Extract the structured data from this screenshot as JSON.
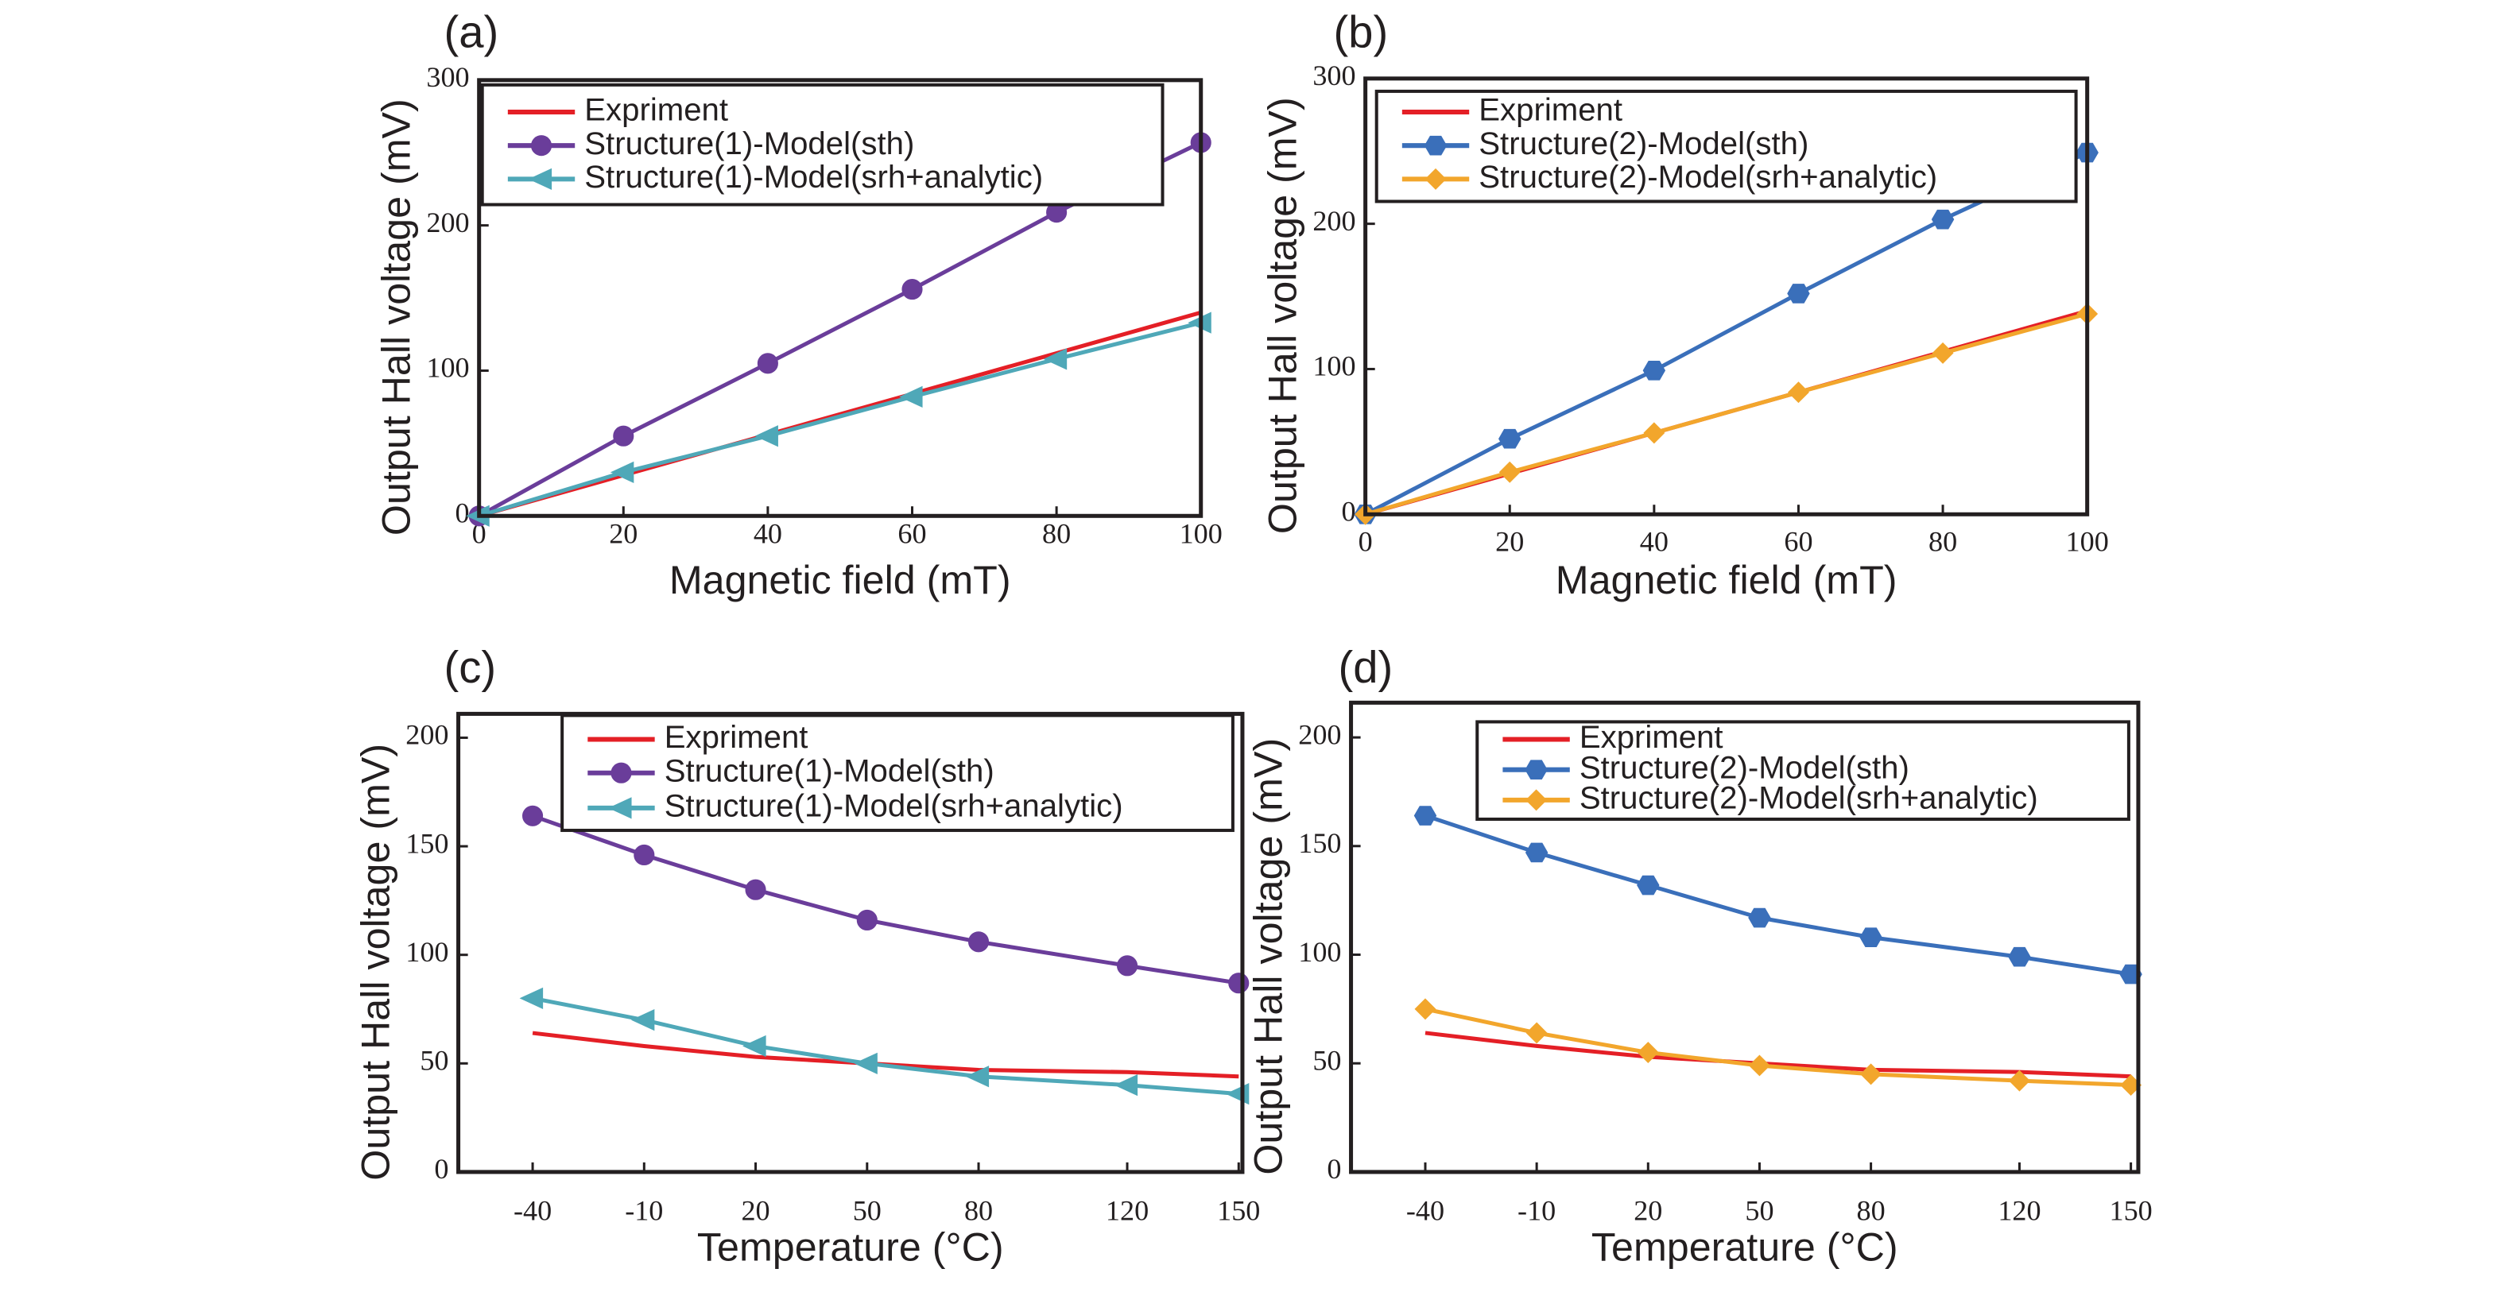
{
  "chart_data": [
    {
      "type": "line",
      "label": "(a)",
      "xlabel": "Magnetic field (mT)",
      "ylabel": "Output Hall voltage (mV)",
      "x": [
        0,
        20,
        40,
        60,
        80,
        100
      ],
      "xlim": [
        0,
        100
      ],
      "xticks": [
        0,
        20,
        40,
        60,
        80,
        100
      ],
      "ylim": [
        0,
        300
      ],
      "yticks": [
        0,
        100,
        200,
        300
      ],
      "series": [
        {
          "name": "Expriment",
          "color": "#e41f26",
          "marker": "none",
          "values": [
            0,
            28,
            56,
            84,
            112,
            140
          ]
        },
        {
          "name": "Structure(1)-Model(sth)",
          "color": "#6a3d9a",
          "marker": "circle",
          "values": [
            0,
            55,
            105,
            156,
            209,
            257
          ]
        },
        {
          "name": "Structure(1)-Model(srh+analytic)",
          "color": "#4fa8b8",
          "marker": "triangle-left",
          "values": [
            0,
            30,
            55,
            82,
            108,
            133
          ]
        }
      ]
    },
    {
      "type": "line",
      "label": "(b)",
      "xlabel": "Magnetic field (mT)",
      "ylabel": "Output Hall voltage (mV)",
      "x": [
        0,
        20,
        40,
        60,
        80,
        100
      ],
      "xlim": [
        0,
        100
      ],
      "xticks": [
        0,
        20,
        40,
        60,
        80,
        100
      ],
      "ylim": [
        0,
        300
      ],
      "yticks": [
        0,
        100,
        200,
        300
      ],
      "series": [
        {
          "name": "Expriment",
          "color": "#e41f26",
          "marker": "none",
          "values": [
            0,
            28,
            56,
            84,
            112,
            140
          ]
        },
        {
          "name": "Structure(2)-Model(sth)",
          "color": "#3a6fba",
          "marker": "hexagon",
          "values": [
            0,
            52,
            99,
            152,
            203,
            249
          ]
        },
        {
          "name": "Structure(2)-Model(srh+analytic)",
          "color": "#f2a62c",
          "marker": "diamond",
          "values": [
            0,
            29,
            56,
            84,
            111,
            138
          ]
        }
      ]
    },
    {
      "type": "line",
      "label": "(c)",
      "xlabel": "Temperature (°C)",
      "ylabel": "Output Hall voltage (mV)",
      "x": [
        -40,
        -10,
        20,
        50,
        80,
        120,
        150
      ],
      "xlim": [
        -60,
        151
      ],
      "xticks": [
        -40,
        -10,
        20,
        50,
        80,
        120,
        150
      ],
      "ylim": [
        0,
        211
      ],
      "yticks": [
        0,
        50,
        100,
        150,
        200
      ],
      "series": [
        {
          "name": "Expriment",
          "color": "#e41f26",
          "marker": "none",
          "values": [
            64,
            58,
            53,
            50,
            47,
            46,
            44
          ]
        },
        {
          "name": "Structure(1)-Model(sth)",
          "color": "#6a3d9a",
          "marker": "circle",
          "values": [
            164,
            146,
            130,
            116,
            106,
            95,
            87
          ]
        },
        {
          "name": "Structure(1)-Model(srh+analytic)",
          "color": "#4fa8b8",
          "marker": "triangle-left",
          "values": [
            80,
            70,
            58,
            50,
            44,
            40,
            36
          ]
        }
      ]
    },
    {
      "type": "line",
      "label": "(d)",
      "xlabel": "Temperature (°C)",
      "ylabel": "Output Hall voltage (mV)",
      "x": [
        -40,
        -10,
        20,
        50,
        80,
        120,
        150
      ],
      "xlim": [
        -60,
        152
      ],
      "xticks": [
        -40,
        -10,
        20,
        50,
        80,
        120,
        150
      ],
      "ylim": [
        0,
        216
      ],
      "yticks": [
        0,
        50,
        100,
        150,
        200
      ],
      "series": [
        {
          "name": "Expriment",
          "color": "#e41f26",
          "marker": "none",
          "values": [
            64,
            58,
            53,
            50,
            47,
            46,
            44
          ]
        },
        {
          "name": "Structure(2)-Model(sth)",
          "color": "#3a6fba",
          "marker": "hexagon",
          "values": [
            164,
            147,
            132,
            117,
            108,
            99,
            91
          ]
        },
        {
          "name": "Structure(2)-Model(srh+analytic)",
          "color": "#f2a62c",
          "marker": "diamond",
          "values": [
            75,
            64,
            55,
            49,
            45,
            42,
            40
          ]
        }
      ]
    }
  ]
}
